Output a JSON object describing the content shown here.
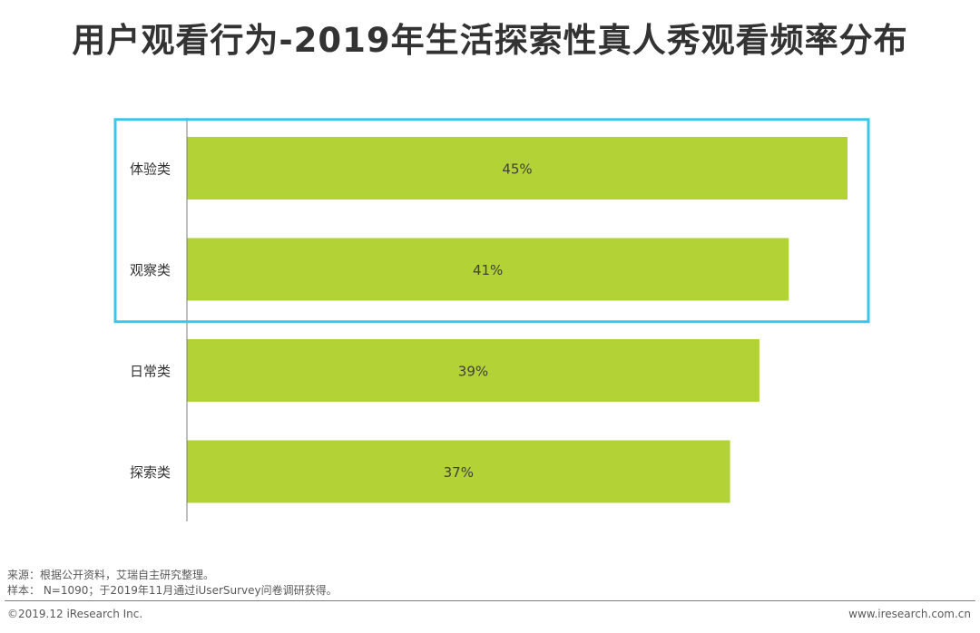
{
  "title": "用户观看行为-2019年生活探索性真人秀观看频率分布",
  "chart_data": {
    "type": "bar",
    "orientation": "horizontal",
    "categories": [
      "体验类",
      "观察类",
      "日常类",
      "探索类"
    ],
    "values": [
      45,
      41,
      39,
      37
    ],
    "value_labels": [
      "45%",
      "41%",
      "39%",
      "37%"
    ],
    "unit": "%",
    "bar_color": "#b2d235",
    "highlight_color": "#3cc5e8",
    "highlighted_categories": [
      "体验类",
      "观察类"
    ],
    "grid": false,
    "legend": "none"
  },
  "footer": {
    "source": "来源：根据公开资料，艾瑞自主研究整理。",
    "sample": "样本：  N=1090；于2019年11月通过iUserSurvey问卷调研获得。",
    "copyright": "©2019.12 iResearch Inc.",
    "website": "www.iresearch.com.cn"
  }
}
